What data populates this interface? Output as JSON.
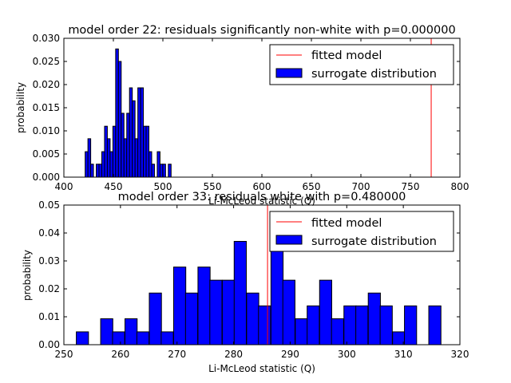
{
  "chart_data": [
    {
      "type": "bar",
      "title": "model order 22: residuals significantly non-white with p=0.000000",
      "xlabel": "Li-McLeod statistic (Q)",
      "ylabel": "probability",
      "xlim": [
        400,
        800
      ],
      "ylim": [
        0,
        0.03
      ],
      "xticks": [
        "400",
        "450",
        "500",
        "550",
        "600",
        "650",
        "700",
        "750",
        "800"
      ],
      "yticks": [
        "0.000",
        "0.005",
        "0.010",
        "0.015",
        "0.020",
        "0.025",
        "0.030"
      ],
      "grid": false,
      "legend_position": "top-right",
      "legend": [
        "fitted model",
        "surrogate distribution"
      ],
      "colors": {
        "fitted": "#ff0000",
        "bars": "#0000ff",
        "edge": "#000000"
      },
      "fitted_value": 771,
      "bin_width": 2.8,
      "bins": [
        [
          421.5,
          0.0055
        ],
        [
          424.3,
          0.0083
        ],
        [
          427.1,
          0.0028
        ],
        [
          432.7,
          0.0028
        ],
        [
          435.5,
          0.0028
        ],
        [
          438.3,
          0.0055
        ],
        [
          441.1,
          0.011
        ],
        [
          443.9,
          0.0083
        ],
        [
          446.7,
          0.0055
        ],
        [
          449.5,
          0.011
        ],
        [
          452.3,
          0.0277
        ],
        [
          455.1,
          0.025
        ],
        [
          457.9,
          0.0138
        ],
        [
          460.7,
          0.0083
        ],
        [
          463.5,
          0.0138
        ],
        [
          466.3,
          0.0193
        ],
        [
          469.1,
          0.0165
        ],
        [
          471.9,
          0.0083
        ],
        [
          474.7,
          0.0193
        ],
        [
          477.5,
          0.0193
        ],
        [
          480.3,
          0.011
        ],
        [
          483.1,
          0.011
        ],
        [
          485.9,
          0.0055
        ],
        [
          488.7,
          0.0028
        ],
        [
          494.3,
          0.0055
        ],
        [
          497.1,
          0.0028
        ],
        [
          499.9,
          0.0028
        ],
        [
          505.5,
          0.0028
        ]
      ]
    },
    {
      "type": "bar",
      "title": "model order 33: residuals white with p=0.480000",
      "xlabel": "Li-McLeod statistic (Q)",
      "ylabel": "probability",
      "xlim": [
        250,
        320
      ],
      "ylim": [
        0,
        0.05
      ],
      "xticks": [
        "250",
        "260",
        "270",
        "280",
        "290",
        "300",
        "310",
        "320"
      ],
      "yticks": [
        "0.00",
        "0.01",
        "0.02",
        "0.03",
        "0.04",
        "0.05"
      ],
      "grid": false,
      "legend_position": "top-right",
      "legend": [
        "fitted model",
        "surrogate distribution"
      ],
      "colors": {
        "fitted": "#ff0000",
        "bars": "#0000ff",
        "edge": "#000000"
      },
      "fitted_value": 286,
      "bin_width": 2.15,
      "bins": [
        [
          252.2,
          0.0046
        ],
        [
          256.5,
          0.0093
        ],
        [
          258.6,
          0.0046
        ],
        [
          260.8,
          0.0093
        ],
        [
          262.9,
          0.0046
        ],
        [
          265.1,
          0.0185
        ],
        [
          267.2,
          0.0046
        ],
        [
          269.4,
          0.0278
        ],
        [
          271.5,
          0.0185
        ],
        [
          273.7,
          0.0278
        ],
        [
          275.8,
          0.0231
        ],
        [
          278.0,
          0.0231
        ],
        [
          280.1,
          0.037
        ],
        [
          282.3,
          0.0185
        ],
        [
          284.4,
          0.0139
        ],
        [
          286.6,
          0.037
        ],
        [
          288.7,
          0.0231
        ],
        [
          290.9,
          0.0093
        ],
        [
          293.0,
          0.0139
        ],
        [
          295.2,
          0.0231
        ],
        [
          297.3,
          0.0093
        ],
        [
          299.5,
          0.0139
        ],
        [
          301.6,
          0.0139
        ],
        [
          303.8,
          0.0185
        ],
        [
          305.9,
          0.0139
        ],
        [
          308.1,
          0.0046
        ],
        [
          310.2,
          0.0139
        ],
        [
          314.5,
          0.0139
        ]
      ]
    }
  ]
}
